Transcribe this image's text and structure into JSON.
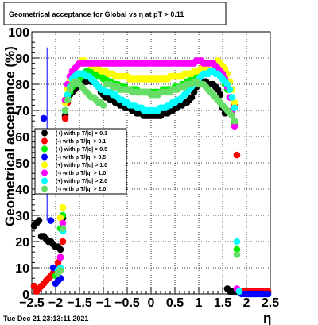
{
  "chart_data": {
    "type": "scatter",
    "title": "Geometrical acceptance for Global vs   η at pT > 0.11",
    "xlabel": "η",
    "ylabel": "Geometrical acceptance (%)",
    "xlim": [
      -2.5,
      2.5
    ],
    "ylim": [
      0,
      100
    ],
    "x_ticks": [
      "−2.5",
      "−2",
      "−1.5",
      "−1",
      "−0.5",
      "0",
      "0.5",
      "1",
      "1.5",
      "2",
      "2.5"
    ],
    "y_ticks": [
      "0",
      "10",
      "20",
      "30",
      "40",
      "50",
      "60",
      "70",
      "80",
      "90",
      "100"
    ],
    "grid": true,
    "legend_position": "left",
    "timestamp": "Tue Dec 21 23:13:11 2021",
    "series": [
      {
        "name": "(+) with p T/|q| > 0.1",
        "color": "#000000",
        "x": [
          -2.45,
          -2.4,
          -2.35,
          -2.3,
          -2.25,
          -2.2,
          -2.15,
          -2.1,
          -2.05,
          -2.0,
          -1.95,
          -1.9,
          -1.85,
          -1.8,
          -1.75,
          -1.7,
          -1.65,
          -1.6,
          -1.55,
          -1.5,
          -1.45,
          -1.4,
          -1.35,
          -1.3,
          -1.25,
          -1.2,
          -1.15,
          -1.1,
          -1.05,
          -1.0,
          -0.95,
          -0.9,
          -0.85,
          -0.8,
          -0.75,
          -0.7,
          -0.65,
          -0.6,
          -0.55,
          -0.5,
          -0.45,
          -0.4,
          -0.35,
          -0.3,
          -0.25,
          -0.2,
          -0.15,
          -0.1,
          -0.05,
          0.0,
          0.05,
          0.1,
          0.15,
          0.2,
          0.25,
          0.3,
          0.35,
          0.4,
          0.45,
          0.5,
          0.55,
          0.6,
          0.65,
          0.7,
          0.75,
          0.8,
          0.85,
          0.9,
          0.95,
          1.0,
          1.05,
          1.1,
          1.15,
          1.2,
          1.25,
          1.3,
          1.35,
          1.4,
          1.45,
          1.5,
          1.55,
          1.6,
          1.65,
          1.7,
          1.75,
          1.8,
          1.85,
          1.9,
          1.95,
          2.0,
          2.05,
          2.1,
          2.15,
          2.2,
          2.25,
          2.3,
          2.35,
          2.4,
          2.45
        ],
        "y": [
          26,
          27,
          28,
          22,
          22,
          21,
          20,
          20,
          19,
          18,
          18,
          17,
          29,
          68,
          74,
          76,
          77,
          78,
          79,
          80,
          80,
          81,
          81,
          82,
          81,
          81,
          80,
          79,
          77,
          76,
          75,
          75,
          74,
          74,
          73,
          73,
          72,
          72,
          71,
          71,
          71,
          70,
          70,
          69,
          69,
          69,
          68,
          68,
          68,
          68,
          68,
          68,
          68,
          68,
          69,
          69,
          69,
          70,
          70,
          71,
          71,
          72,
          72,
          73,
          73,
          74,
          75,
          77,
          79,
          80,
          81,
          81,
          81,
          80,
          80,
          80,
          79,
          78,
          76,
          71,
          69,
          2,
          1,
          1,
          1,
          1,
          1,
          1,
          1,
          1,
          1,
          1,
          1,
          1,
          1,
          1,
          1,
          1,
          1
        ]
      },
      {
        "name": "(-) with p T/|q| > 0.1",
        "color": "#ff0000",
        "x": [
          -2.45,
          -2.4,
          -2.35,
          -2.3,
          -2.25,
          -2.2,
          -2.15,
          -2.1,
          -2.05,
          -2.0,
          -1.95,
          -1.9,
          -1.85,
          -1.8,
          -1.75,
          1.75,
          1.8,
          1.85,
          1.9,
          1.95,
          2.0,
          2.05,
          2.1,
          2.15,
          2.2,
          2.25,
          2.3,
          2.35,
          2.4,
          2.45
        ],
        "y": [
          3,
          1,
          2,
          3,
          4,
          5,
          6,
          7,
          8,
          10,
          12,
          14,
          20,
          67,
          73,
          72,
          53,
          1,
          1,
          1,
          1,
          1,
          1,
          1,
          1,
          1,
          1,
          1,
          1,
          1
        ]
      },
      {
        "name": "(+) with p T/|q| > 0.5",
        "color": "#00ee00",
        "x": [
          -2.0,
          -1.95,
          -1.9,
          -1.85,
          -1.8,
          -1.75,
          -1.7,
          -1.65,
          -1.6,
          -1.55,
          -1.5,
          -1.45,
          -1.4,
          -1.35,
          -1.3,
          -1.25,
          -1.2,
          -1.15,
          -1.1,
          -1.05,
          -1.0,
          -0.95,
          -0.9,
          -0.85,
          -0.8,
          -0.75,
          -0.7,
          -0.65,
          -0.6,
          -0.55,
          -0.5,
          -0.45,
          -0.4,
          -0.35,
          -0.3,
          -0.25,
          -0.2,
          -0.15,
          -0.1,
          -0.05,
          0.0,
          0.05,
          0.1,
          0.15,
          0.2,
          0.25,
          0.3,
          0.35,
          0.4,
          0.45,
          0.5,
          0.55,
          0.6,
          0.65,
          0.7,
          0.75,
          0.8,
          0.85,
          0.9,
          0.95,
          1.0,
          1.05,
          1.1,
          1.15,
          1.2,
          1.25,
          1.3,
          1.35,
          1.4,
          1.45,
          1.5,
          1.55,
          1.6,
          1.65,
          1.7,
          1.75,
          1.8
        ],
        "y": [
          7,
          9,
          25,
          30,
          70,
          75,
          77,
          79,
          80,
          81,
          82,
          83,
          84,
          85,
          85,
          85,
          84,
          84,
          83,
          83,
          82,
          82,
          81,
          81,
          80,
          80,
          80,
          79,
          79,
          79,
          78,
          78,
          78,
          78,
          78,
          77,
          77,
          77,
          77,
          77,
          77,
          77,
          77,
          77,
          77,
          78,
          78,
          78,
          78,
          78,
          79,
          79,
          79,
          80,
          80,
          81,
          81,
          82,
          82,
          83,
          83,
          84,
          84,
          85,
          85,
          85,
          85,
          85,
          84,
          83,
          82,
          80,
          78,
          75,
          70,
          65,
          17
        ]
      },
      {
        "name": "(-) with p T/|q| > 0.5",
        "color": "#0000ff",
        "x": [
          -2.25,
          -2.2,
          -2.15,
          -2.1,
          -2.05,
          -2.0,
          -1.95,
          -1.9,
          -1.85,
          1.85,
          1.9,
          1.95,
          2.0,
          2.05,
          2.1,
          2.15,
          2.2,
          2.25,
          2.3,
          2.35,
          2.4,
          2.45
        ],
        "y": [
          67,
          50,
          40,
          28,
          10,
          4,
          5,
          6,
          24,
          1,
          0,
          0,
          0,
          0,
          0,
          0,
          0,
          0,
          0,
          0,
          0,
          0
        ],
        "yerr": [
          0,
          0,
          0,
          0,
          0,
          0,
          0,
          0,
          0,
          0,
          0,
          0,
          0,
          0,
          0,
          0,
          0,
          0,
          0,
          0,
          0,
          0
        ]
      },
      {
        "name": "(+) with p T/|q| > 1.0",
        "color": "#ffff00",
        "x": [
          -1.95,
          -1.9,
          -1.85,
          -1.8,
          -1.75,
          -1.7,
          -1.65,
          -1.6,
          -1.55,
          -1.5,
          -1.45,
          -1.4,
          -1.35,
          -1.3,
          -1.25,
          -1.2,
          -1.15,
          -1.1,
          -1.05,
          -1.0,
          -0.95,
          -0.9,
          -0.85,
          -0.8,
          -0.75,
          -0.7,
          -0.65,
          -0.6,
          -0.55,
          -0.5,
          -0.45,
          -0.4,
          -0.35,
          -0.3,
          -0.25,
          -0.2,
          -0.15,
          -0.1,
          -0.05,
          0.0,
          0.05,
          0.1,
          0.15,
          0.2,
          0.25,
          0.3,
          0.35,
          0.4,
          0.45,
          0.5,
          0.55,
          0.6,
          0.65,
          0.7,
          0.75,
          0.8,
          0.85,
          0.9,
          0.95,
          1.0,
          1.05,
          1.1,
          1.15,
          1.2,
          1.25,
          1.3,
          1.35,
          1.4,
          1.45,
          1.5,
          1.55,
          1.6,
          1.65,
          1.7,
          1.75,
          1.8
        ],
        "y": [
          8,
          29,
          33,
          73,
          78,
          81,
          84,
          86,
          87,
          88,
          89,
          89,
          88,
          88,
          87,
          87,
          86,
          86,
          85,
          85,
          85,
          84,
          84,
          84,
          83,
          83,
          83,
          83,
          83,
          83,
          82,
          82,
          82,
          82,
          82,
          82,
          82,
          82,
          82,
          82,
          82,
          82,
          82,
          82,
          82,
          82,
          82,
          83,
          83,
          83,
          83,
          83,
          83,
          84,
          84,
          84,
          84,
          85,
          85,
          85,
          86,
          86,
          87,
          87,
          88,
          88,
          88,
          89,
          88,
          87,
          86,
          84,
          81,
          78,
          73,
          20
        ]
      },
      {
        "name": "(-) with p T/|q| > 1.0",
        "color": "#ff00ff",
        "x": [
          -1.9,
          -1.85,
          -1.8,
          -1.75,
          -1.7,
          -1.65,
          -1.6,
          -1.55,
          -1.5,
          -1.45,
          -1.4,
          -1.35,
          -1.3,
          -1.25,
          -1.2,
          -1.15,
          -1.1,
          -1.05,
          -1.0,
          -0.95,
          -0.9,
          -0.85,
          -0.8,
          -0.75,
          -0.7,
          -0.65,
          -0.6,
          -0.55,
          -0.5,
          -0.45,
          -0.4,
          -0.35,
          -0.3,
          -0.25,
          -0.2,
          -0.15,
          -0.1,
          -0.05,
          0.0,
          0.05,
          0.1,
          0.15,
          0.2,
          0.25,
          0.3,
          0.35,
          0.4,
          0.45,
          0.5,
          0.55,
          0.6,
          0.65,
          0.7,
          0.75,
          0.8,
          0.85,
          0.9,
          0.95,
          1.0,
          1.05,
          1.1,
          1.15,
          1.2,
          1.25,
          1.3,
          1.35,
          1.4,
          1.45,
          1.5,
          1.55,
          1.6,
          1.65,
          1.7,
          1.75,
          1.8,
          1.85
        ],
        "y": [
          14,
          27,
          74,
          80,
          83,
          85,
          86,
          87,
          88,
          88,
          88,
          88,
          88,
          88,
          88,
          88,
          88,
          88,
          88,
          88,
          88,
          88,
          88,
          88,
          88,
          88,
          88,
          88,
          88,
          88,
          88,
          88,
          88,
          88,
          88,
          88,
          88,
          88,
          88,
          88,
          88,
          88,
          88,
          88,
          88,
          88,
          88,
          88,
          88,
          88,
          88,
          88,
          88,
          88,
          88,
          88,
          88,
          89,
          89,
          89,
          88,
          88,
          88,
          88,
          88,
          87,
          86,
          85,
          84,
          82,
          79,
          75,
          70,
          64,
          2,
          1
        ]
      },
      {
        "name": "(+) with p T/|q| > 2.0",
        "color": "#00ffff",
        "x": [
          -1.95,
          -1.9,
          -1.85,
          -1.8,
          -1.75,
          -1.7,
          -1.65,
          -1.6,
          -1.55,
          -1.5,
          -1.45,
          -1.4,
          -1.35,
          -1.3,
          -1.25,
          -1.2,
          -1.15,
          -1.1,
          -1.05,
          -1.0,
          -0.95,
          -0.9,
          -0.85,
          -0.8,
          -0.75,
          -0.7,
          -0.65,
          -0.6,
          -0.55,
          -0.5,
          -0.45,
          -0.4,
          -0.35,
          -0.3,
          -0.25,
          -0.2,
          -0.15,
          -0.1,
          -0.05,
          0.0,
          0.05,
          0.1,
          0.15,
          0.2,
          0.25,
          0.3,
          0.35,
          0.4,
          0.45,
          0.5,
          0.55,
          0.6,
          0.65,
          0.7,
          0.75,
          0.8,
          0.85,
          0.9,
          0.95,
          1.0,
          1.05,
          1.1,
          1.15,
          1.2,
          1.25,
          1.3,
          1.35,
          1.4,
          1.45,
          1.5,
          1.55,
          1.6,
          1.65,
          1.7,
          1.75,
          1.8,
          1.85
        ],
        "y": [
          9,
          10,
          24,
          70,
          76,
          79,
          82,
          83,
          84,
          84,
          84,
          84,
          83,
          83,
          82,
          81,
          80,
          79,
          78,
          78,
          77,
          77,
          77,
          76,
          76,
          75,
          74,
          74,
          73,
          73,
          72,
          72,
          72,
          71,
          71,
          71,
          70,
          70,
          70,
          70,
          70,
          70,
          70,
          71,
          71,
          71,
          72,
          72,
          73,
          73,
          74,
          74,
          75,
          76,
          77,
          78,
          79,
          80,
          81,
          82,
          83,
          84,
          84,
          84,
          85,
          85,
          84,
          84,
          83,
          82,
          81,
          80,
          78,
          75,
          71,
          20,
          1
        ]
      },
      {
        "name": "(-) with p T/|q| > 2.0",
        "color": "#66dd66",
        "x": [
          -1.95,
          -1.9,
          -1.85,
          -1.8,
          -1.75,
          -1.7,
          -1.65,
          -1.6,
          -1.55,
          -1.5,
          -1.45,
          -1.4,
          -1.35,
          -1.3,
          -1.25,
          -1.2,
          -1.15,
          -1.1,
          -1.05,
          -1.0,
          -0.95,
          -0.9,
          -0.85,
          -0.8,
          -0.75,
          -0.7,
          -0.65,
          -0.6,
          -0.55,
          -0.5,
          -0.45,
          -0.4,
          -0.35,
          -0.3,
          -0.25,
          -0.2,
          -0.15,
          -0.1,
          -0.05,
          0.0,
          0.05,
          0.1,
          0.15,
          0.2,
          0.25,
          0.3,
          0.35,
          0.4,
          0.45,
          0.5,
          0.55,
          0.6,
          0.65,
          0.7,
          0.75,
          0.8,
          0.85,
          0.9,
          0.95,
          1.0,
          1.05,
          1.1,
          1.15,
          1.2,
          1.25,
          1.3,
          1.35,
          1.4,
          1.45,
          1.5,
          1.55,
          1.6,
          1.65,
          1.7,
          1.75,
          1.8
        ],
        "y": [
          8,
          9,
          25,
          70,
          74,
          78,
          80,
          81,
          81,
          80,
          79,
          78,
          77,
          76,
          75,
          75,
          74,
          73,
          73,
          72,
          80,
          80,
          80,
          79,
          79,
          79,
          78,
          78,
          78,
          78,
          78,
          77,
          77,
          77,
          77,
          77,
          77,
          77,
          77,
          76,
          76,
          76,
          76,
          77,
          77,
          77,
          77,
          77,
          78,
          78,
          78,
          79,
          79,
          79,
          80,
          80,
          80,
          81,
          81,
          80,
          80,
          80,
          79,
          78,
          77,
          76,
          75,
          74,
          73,
          72,
          71,
          70,
          69,
          68,
          66,
          15
        ]
      }
    ]
  }
}
